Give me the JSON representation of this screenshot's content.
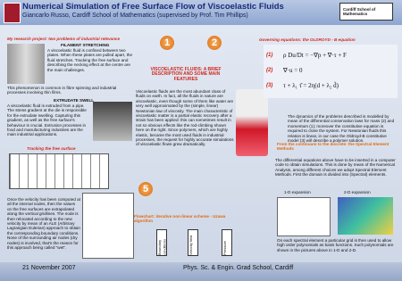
{
  "header": {
    "title": "Numerical Simulation of Free Surface Flow of Viscoelastic Fluids",
    "subtitle": "Giancarlo Russo, Cardiff School of Mathematics (supervised by Prof. Tim Phillips)",
    "logo_right": "Cardiff School of Mathematics"
  },
  "left": {
    "intro": "My research project: two problems of industrial relevance",
    "filament_title": "FILAMENT STRETCHING",
    "filament_text": "A viscoelastic fluid is confined between two plates. When these plates are pulled apart, the fluid stretches. Tracking the free surface and describing the necking effect at the centre are the main challenges.",
    "filament_note": "This phenomenon is common in fibre spinning and industrial processes involving thin films.",
    "extrudate_title": "EXTRUDATE SWELL",
    "extrudate_text": "A viscoelastic fluid is extruded from a pipe. The stress gradient at the die is responsible for the extrudate swelling. Capturing this gradient, as well as the free surface's behaviour is crucial. Extrusion processes in food and manufacturing industries are the main industrial applications.",
    "tracking_title": "Tracking the free surface",
    "tracking_text": "Once the velocity has been computed at all the internal nodes, then the values on the free surfaces are extrapolated along the vertical gridlines. The node is then relocated according to the new velocity by mean of an ALE (Arbitrary Lagrangian Eulerian) approach to obtain the corresponding boundary conditions. None of the surrounding air nodes (dry nodes) is involved, that's the reason for this approach being called \"wet\"."
  },
  "middle": {
    "heading": "VISCOELASTIC FLUIDS: A BRIEF DESCRIPTION AND SOME MAIN FEATURES",
    "text": "Viscoelastic fluids are the most abundant class of fluids on earth. In fact, all the fluids in nature are viscoelastic, even though some of them like water are very well approximated by the (simple, linear) Newtonian law of viscosity. The main characteristic of viscoelastic matter is a partial elastic recovery after a strain has been applied: this can sometimes result in not so obvious effects like the rod-climbing shown here on the right. Since polymers, which are highly elastic, became the most used fluids in industrial processes, the request for highly accurate simulations of viscoelastic flows grew dramatically.",
    "flowchart_title": "Flowchart: iterative non-linear scheme - Uzawa algorithm",
    "flowchart_boxes": [
      "Boundary conditions",
      "Velocity field",
      "Pressure"
    ]
  },
  "right": {
    "equations_title": "Governing equations: the OLDROYD - B equation",
    "equations": [
      {
        "num": "(1)",
        "text": "ρ Du/Dt = −∇p + ∇·τ + F"
      },
      {
        "num": "(2)",
        "text": "∇·u = 0"
      },
      {
        "num": "(3)",
        "text": "τ + λ₁ τ̆ = 2η(d + λ₂ d̆)"
      }
    ],
    "equations_text": "The dynamics of the problems described is modelled by mean of the differential conservation laws for mass (2) and momentum (1); moreover the constitutive equation is required to close the system. For Newtonian fluids this relation is linear, in our case the Oldroyd-B constitutive model (3) will describe a polymer solution.",
    "sem_title": "From the continuum to the discrete: the Spectral Element Methods",
    "sem_text": "The differential equations above have to be inserted in a computer code to obtain simulations. This is done by mean of the Numerical Analysis, among different choices we adopt Spectral Element Methods. First the domain is divided into (Spectral) elements.",
    "exp1": "1-D expansion",
    "exp2": "2-D expansion",
    "sem_text2": "On each spectral element a particular grid is then used to allow high order polynomials as basis functions. Such polynomials are shown in the pictures above in 1-D and 2-D."
  },
  "badges": [
    "1",
    "2",
    "3",
    "5"
  ],
  "footer": {
    "date": "21 November 2007",
    "school": "Phys. Sc. & Engin. Grad School, Cardiff"
  }
}
